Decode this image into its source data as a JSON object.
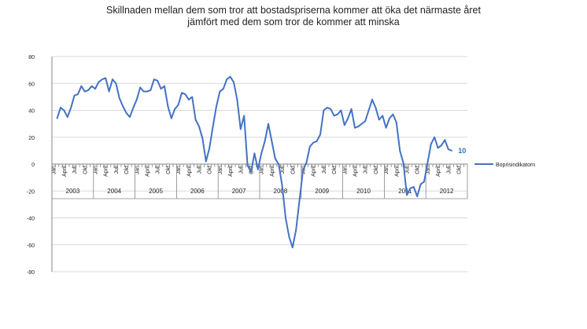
{
  "chart_data": {
    "type": "line",
    "title": [
      "Skillnaden mellan dem som tror att bostadspriserna kommer att öka det närmaste året",
      "jämfört med dem som tror de kommer att minska"
    ],
    "ylim": [
      -80,
      80
    ],
    "yticks": [
      -80,
      -60,
      -40,
      -20,
      0,
      20,
      40,
      60,
      80
    ],
    "grid": true,
    "legend_position": "right",
    "month_tick_labels": [
      "Jan",
      "April",
      "Juli",
      "Okt"
    ],
    "years": [
      "2003",
      "2004",
      "2005",
      "2006",
      "2007",
      "2008",
      "2009",
      "2010",
      "2011",
      "2012"
    ],
    "start_month": "2003-02",
    "last_value_label": "10",
    "colors": {
      "series": "#4472C4",
      "last_label": "#2E75B6",
      "grid": "#D9D9D9",
      "axis": "#868686"
    },
    "series": [
      {
        "name": "Boprisindikatorn",
        "values": [
          34,
          42,
          40,
          35,
          42,
          51,
          52,
          58,
          54,
          55,
          58,
          56,
          61,
          63,
          64,
          54,
          63,
          60,
          49,
          43,
          38,
          35,
          42,
          48,
          57,
          54,
          54,
          55,
          63,
          62,
          56,
          58,
          43,
          34,
          41,
          44,
          53,
          52,
          48,
          50,
          33,
          28,
          19,
          2,
          12,
          28,
          43,
          54,
          56,
          63,
          65,
          61,
          48,
          26,
          36,
          -1,
          -6,
          8,
          -4,
          8,
          17,
          30,
          17,
          4,
          0,
          -16,
          -40,
          -54,
          -62,
          -49,
          -27,
          -5,
          1,
          13,
          16,
          17,
          22,
          40,
          42,
          41,
          36,
          37,
          40,
          29,
          34,
          41,
          27,
          28,
          30,
          32,
          40,
          48,
          42,
          33,
          36,
          27,
          34,
          37,
          31,
          10,
          1,
          -23,
          -18,
          -17,
          -24,
          -15,
          -13,
          1,
          15,
          20,
          12,
          14,
          18,
          11,
          10
        ]
      }
    ]
  }
}
